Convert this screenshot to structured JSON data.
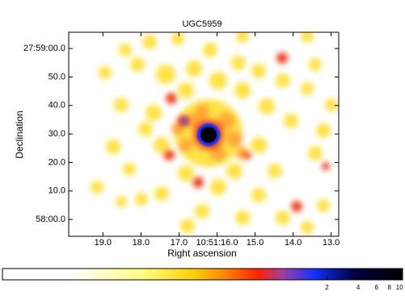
{
  "chart_data": {
    "type": "image",
    "title": "UGC5959",
    "xlabel": "Right ascension",
    "ylabel": "Declination",
    "xlim": [
      19.9,
      12.8
    ],
    "xticks": [
      {
        "value": 19,
        "label": "19.0"
      },
      {
        "value": 18,
        "label": "18.0"
      },
      {
        "value": 17,
        "label": "17.0"
      },
      {
        "value": 16,
        "label": "10:51:16.0"
      },
      {
        "value": 15,
        "label": "15.0"
      },
      {
        "value": 14,
        "label": "14.0"
      },
      {
        "value": 13,
        "label": "13.0"
      }
    ],
    "ylim": [
      -5.9,
      65.7
    ],
    "yticks": [
      {
        "value": 60,
        "label": "27:59:00.0"
      },
      {
        "value": 50,
        "label": "50.0"
      },
      {
        "value": 40,
        "label": "40.0"
      },
      {
        "value": 30,
        "label": "30.0"
      },
      {
        "value": 20,
        "label": "20.0"
      },
      {
        "value": 10,
        "label": "10.0"
      },
      {
        "value": 0,
        "label": "58:00.0"
      }
    ],
    "colorbar": {
      "log": true,
      "clim": [
        0.0015,
        10.7
      ],
      "ticks": [
        2,
        4,
        6,
        8,
        10
      ]
    }
  }
}
